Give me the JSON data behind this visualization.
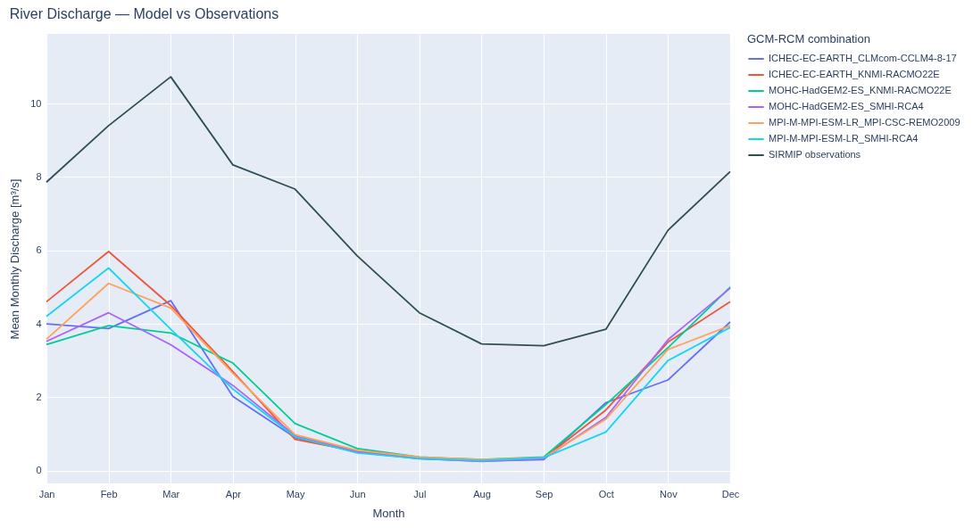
{
  "chart_data": {
    "type": "line",
    "title": "River Discharge — Model vs Observations",
    "xlabel": "Month",
    "ylabel": "Mean Monthly Discharge [m³/s]",
    "legend_title": "GCM-RCM combination",
    "categories": [
      "Jan",
      "Feb",
      "Mar",
      "Apr",
      "May",
      "Jun",
      "Jul",
      "Aug",
      "Sep",
      "Oct",
      "Nov",
      "Dec"
    ],
    "series": [
      {
        "name": "ICHEC-EC-EARTH_CLMcom-CCLM4-8-17",
        "color": "#636efa",
        "values": [
          4.0,
          3.87,
          4.63,
          2.02,
          0.9,
          0.5,
          0.32,
          0.26,
          0.3,
          1.85,
          2.47,
          4.05
        ]
      },
      {
        "name": "ICHEC-EC-EARTH_KNMI-RACMO22E",
        "color": "#ef553b",
        "values": [
          4.6,
          5.97,
          4.5,
          2.7,
          0.85,
          0.52,
          0.35,
          0.28,
          0.33,
          1.65,
          3.5,
          4.6
        ]
      },
      {
        "name": "MOHC-HadGEM2-ES_KNMI-RACMO22E",
        "color": "#00cc96",
        "values": [
          3.43,
          3.95,
          3.75,
          2.93,
          1.28,
          0.6,
          0.37,
          0.3,
          0.37,
          1.8,
          3.35,
          5.0
        ]
      },
      {
        "name": "MOHC-HadGEM2-ES_SMHI-RCA4",
        "color": "#ab63fa",
        "values": [
          3.52,
          4.3,
          3.43,
          2.32,
          0.95,
          0.52,
          0.33,
          0.25,
          0.32,
          1.45,
          3.57,
          4.97
        ]
      },
      {
        "name": "MPI-M-MPI-ESM-LR_MPI-CSC-REMO2009",
        "color": "#ffa15a",
        "values": [
          3.58,
          5.1,
          4.43,
          2.65,
          0.98,
          0.55,
          0.37,
          0.3,
          0.35,
          1.4,
          3.3,
          3.95
        ]
      },
      {
        "name": "MPI-M-MPI-ESM-LR_SMHI-RCA4",
        "color": "#19d3f3",
        "values": [
          4.2,
          5.52,
          3.85,
          2.22,
          0.92,
          0.48,
          0.33,
          0.27,
          0.35,
          1.05,
          3.0,
          3.9
        ]
      },
      {
        "name": "SIRMIP observations",
        "color": "#2f4f4f",
        "values": [
          7.86,
          9.4,
          10.73,
          8.33,
          7.67,
          5.85,
          4.3,
          3.45,
          3.4,
          3.85,
          6.55,
          8.15
        ]
      }
    ],
    "ylim": [
      -0.35,
      11.9
    ],
    "yticks": [
      0,
      2,
      4,
      6,
      8,
      10
    ],
    "grid": true,
    "legend": "top right",
    "marker": "none",
    "line_style": "solid"
  }
}
